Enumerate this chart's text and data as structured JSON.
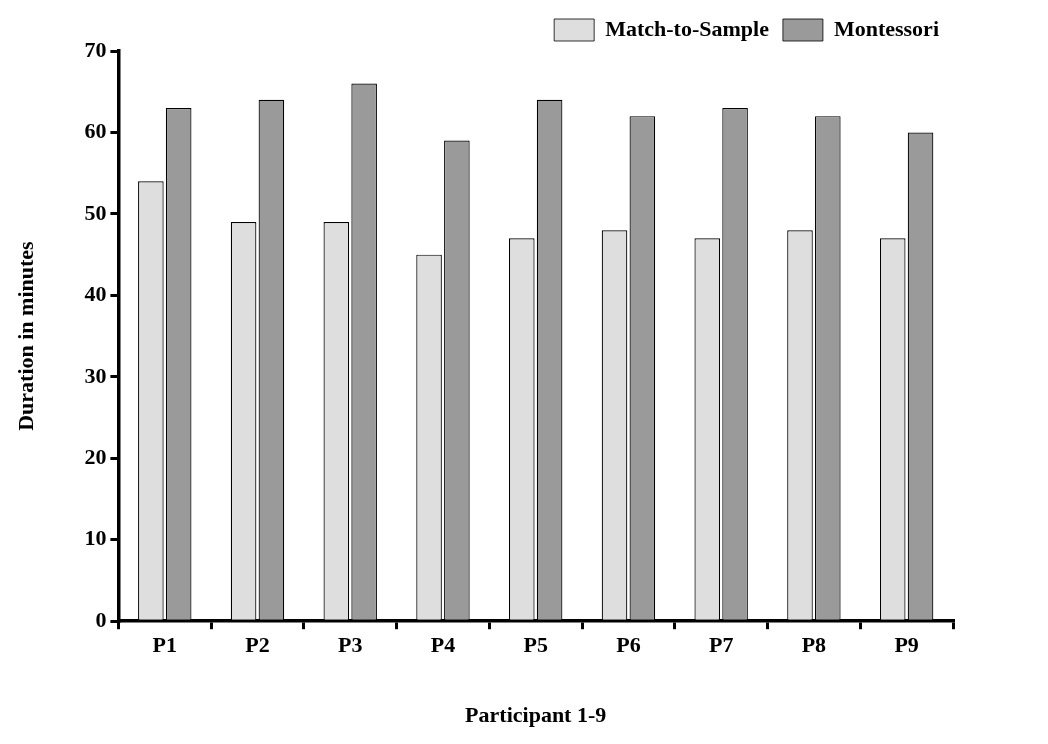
{
  "chart_data": {
    "type": "bar",
    "xlabel": "Participant 1-9",
    "ylabel": "Duration in minutes",
    "categories": [
      "P1",
      "P2",
      "P3",
      "P4",
      "P5",
      "P6",
      "P7",
      "P8",
      "P9"
    ],
    "series": [
      {
        "name": "Match-to-Sample",
        "color": "#dedede",
        "values": [
          54,
          49,
          49,
          45,
          47,
          48,
          47,
          48,
          47
        ]
      },
      {
        "name": "Montessori",
        "color": "#9a9a9a",
        "values": [
          63,
          64,
          66,
          59,
          64,
          62,
          63,
          62,
          60
        ]
      }
    ],
    "ylim": [
      0,
      70
    ],
    "yticks": [
      0,
      10,
      20,
      30,
      40,
      50,
      60,
      70
    ],
    "grid": false,
    "legend": "top right"
  }
}
